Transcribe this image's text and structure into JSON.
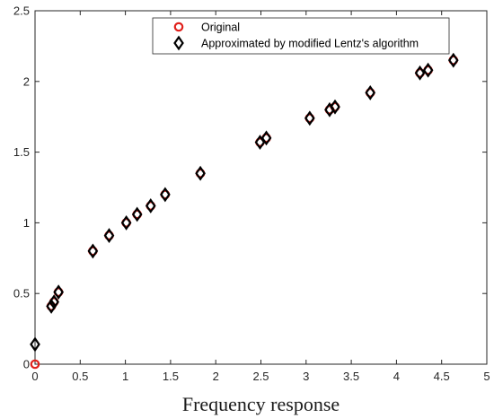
{
  "chart_data": {
    "type": "scatter",
    "title": "",
    "xlabel": "Frequency response",
    "ylabel": "",
    "xlim": [
      0,
      5
    ],
    "ylim": [
      0,
      2.5
    ],
    "xticks": [
      "0",
      "0.5",
      "1",
      "1.5",
      "2",
      "2.5",
      "3",
      "3.5",
      "4",
      "4.5",
      "5"
    ],
    "yticks": [
      "0",
      "0.5",
      "1",
      "1.5",
      "2",
      "2.5"
    ],
    "grid": false,
    "legend_position": "top-center",
    "series": [
      {
        "name": "Original",
        "marker": "circle",
        "color": "#e0201b",
        "x": [
          0,
          0.18,
          0.21,
          0.26,
          0.64,
          0.82,
          1.01,
          1.13,
          1.28,
          1.44,
          1.83,
          2.49,
          2.56,
          3.04,
          3.26,
          3.32,
          3.71,
          4.26,
          4.35,
          4.63
        ],
        "y": [
          0,
          0.41,
          0.44,
          0.51,
          0.8,
          0.91,
          1.0,
          1.06,
          1.12,
          1.2,
          1.35,
          1.57,
          1.6,
          1.74,
          1.8,
          1.82,
          1.92,
          2.06,
          2.08,
          2.15
        ]
      },
      {
        "name": "Approximated by modified Lentz's algorithm",
        "marker": "diamond",
        "color": "#000000",
        "x": [
          0,
          0.18,
          0.21,
          0.26,
          0.64,
          0.82,
          1.01,
          1.13,
          1.28,
          1.44,
          1.83,
          2.49,
          2.56,
          3.04,
          3.26,
          3.32,
          3.71,
          4.26,
          4.35,
          4.63
        ],
        "y": [
          0.14,
          0.41,
          0.44,
          0.51,
          0.8,
          0.91,
          1.0,
          1.06,
          1.12,
          1.2,
          1.35,
          1.57,
          1.6,
          1.74,
          1.8,
          1.82,
          1.92,
          2.06,
          2.08,
          2.15
        ]
      }
    ]
  }
}
